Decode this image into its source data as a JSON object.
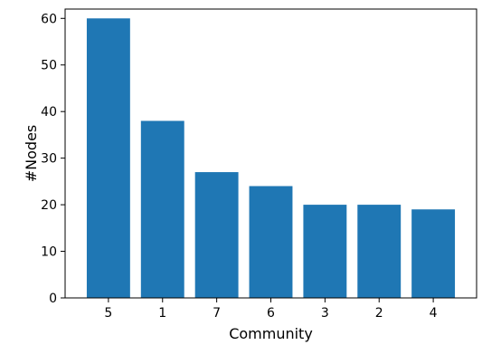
{
  "chart_data": {
    "type": "bar",
    "categories": [
      "5",
      "1",
      "7",
      "6",
      "3",
      "2",
      "4"
    ],
    "values": [
      60,
      38,
      27,
      24,
      20,
      20,
      19
    ],
    "xlabel": "Community",
    "ylabel": "#Nodes",
    "ylim": [
      0,
      62
    ],
    "yticks": [
      0,
      10,
      20,
      30,
      40,
      50,
      60
    ],
    "bar_color": "#1f77b4",
    "grid": false,
    "legend": "none"
  }
}
